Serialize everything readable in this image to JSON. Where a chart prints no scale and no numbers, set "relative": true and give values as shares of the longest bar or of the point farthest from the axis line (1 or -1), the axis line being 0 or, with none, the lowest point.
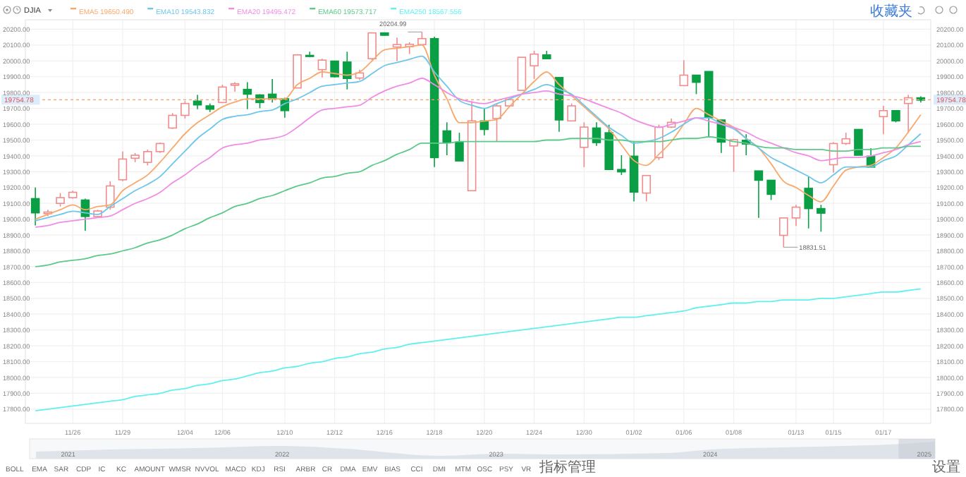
{
  "chart_data": [
    {
      "type": "candlestick",
      "title": "DJIA",
      "subtitle": "收藏夹",
      "categories": [
        null,
        null,
        null,
        "11/26",
        null,
        null,
        null,
        "11/29",
        null,
        null,
        null,
        null,
        "12/04",
        null,
        null,
        "12/06",
        null,
        null,
        null,
        null,
        "12/10",
        null,
        null,
        null,
        "12/12",
        null,
        null,
        null,
        "12/16",
        null,
        null,
        null,
        "12/18",
        null,
        null,
        null,
        "12/20",
        null,
        null,
        null,
        "12/24",
        null,
        null,
        null,
        "12/30",
        null,
        null,
        null,
        "01/02",
        null,
        null,
        null,
        "01/06",
        null,
        null,
        null,
        "01/08",
        null,
        null,
        null,
        null,
        "01/13",
        null,
        null,
        "01/15",
        null,
        null,
        null,
        "01/17",
        null,
        null,
        null
      ],
      "ylim": [
        17710,
        20260
      ],
      "yticks": [
        {
          "value": 17800,
          "label": "17800.00"
        },
        {
          "value": 17900,
          "label": "17900.00"
        },
        {
          "value": 18000,
          "label": "18000.00"
        },
        {
          "value": 18100,
          "label": "18100.00"
        },
        {
          "value": 18200,
          "label": "18200.00"
        },
        {
          "value": 18300,
          "label": "18300.00"
        },
        {
          "value": 18400,
          "label": "18400.00"
        },
        {
          "value": 18500,
          "label": "18500.00"
        },
        {
          "value": 18600,
          "label": "18600.00"
        },
        {
          "value": 18700,
          "label": "18700.00"
        },
        {
          "value": 18800,
          "label": "18800.00"
        },
        {
          "value": 18900,
          "label": "18900.00"
        },
        {
          "value": 19000,
          "label": "19000.00"
        },
        {
          "value": 19100,
          "label": "19100.00"
        },
        {
          "value": 19200,
          "label": "19200.00"
        },
        {
          "value": 19300,
          "label": "19300.00"
        },
        {
          "value": 19400,
          "label": "19400.00"
        },
        {
          "value": 19500,
          "label": "19500.00"
        },
        {
          "value": 19600,
          "label": "19600.00"
        },
        {
          "value": 19700,
          "label": "19700.00"
        },
        {
          "value": 19800,
          "label": "19800.00"
        },
        {
          "value": 19900,
          "label": "19900.00"
        },
        {
          "value": 20000,
          "label": "20000.00"
        },
        {
          "value": 20100,
          "label": "20100.00"
        },
        {
          "value": 20200,
          "label": "20200.00"
        }
      ],
      "y2lim": [
        17710,
        20260
      ],
      "y2ticks": [
        {
          "value": 17800,
          "label": "17800.00"
        },
        {
          "value": 17900,
          "label": "17900.00"
        },
        {
          "value": 18000,
          "label": "18000.00"
        },
        {
          "value": 18100,
          "label": "18100.00"
        },
        {
          "value": 18200,
          "label": "18200.00"
        },
        {
          "value": 18300,
          "label": "18300.00"
        },
        {
          "value": 18400,
          "label": "18400.00"
        },
        {
          "value": 18500,
          "label": "18500.00"
        },
        {
          "value": 18600,
          "label": "18600.00"
        },
        {
          "value": 18700,
          "label": "18700.00"
        },
        {
          "value": 18800,
          "label": "18800.00"
        },
        {
          "value": 18900,
          "label": "18900.00"
        },
        {
          "value": 19000,
          "label": "19000.00"
        },
        {
          "value": 19100,
          "label": "19100.00"
        },
        {
          "value": 19200,
          "label": "19200.00"
        },
        {
          "value": 19300,
          "label": "19300.00"
        },
        {
          "value": 19400,
          "label": "19400.00"
        },
        {
          "value": 19500,
          "label": "19500.00"
        },
        {
          "value": 19600,
          "label": "19600.00"
        },
        {
          "value": 19700,
          "label": "19700.00"
        },
        {
          "value": 19800,
          "label": "19800.00"
        },
        {
          "value": 19900,
          "label": "19900.00"
        },
        {
          "value": 20000,
          "label": "20000.00"
        },
        {
          "value": 20100,
          "label": "20100.00"
        },
        {
          "value": 20200,
          "label": "20200.00"
        }
      ],
      "grid": true,
      "legend": "top left",
      "line_style": "solid",
      "ref_lines": [
        {
          "axis": "y",
          "value": 19754.78,
          "label": "19754.78",
          "color": "#f5a06a",
          "line_style": "dashed"
        }
      ],
      "annotations": [
        "20204.99",
        "18831.51",
        "BOLL",
        "EMA",
        "SAR",
        "CDP",
        "IC",
        "KC",
        "AMOUNT",
        "WMSR",
        "NVVOL",
        "MACD",
        "KDJ",
        "RSI",
        "ARBR",
        "CR",
        "DMA",
        "EMV",
        "BIAS",
        "CCI",
        "DMI",
        "MTM",
        "OSC",
        "PSY",
        "VR",
        "指标管理",
        "设置"
      ],
      "series": [
        {
          "type": "candlestick",
          "ohlc": [
            [
              19130,
              19200,
              18960,
              19040
            ],
            [
              19035,
              19060,
              19020,
              19045
            ],
            [
              19100,
              19165,
              19080,
              19136
            ],
            [
              19136,
              19180,
              19130,
              19170
            ],
            [
              19121,
              19130,
              18927,
              19017
            ],
            [
              19017,
              19060,
              19010,
              19052
            ],
            [
              19076,
              19240,
              19060,
              19210
            ],
            [
              19249,
              19427,
              19240,
              19380
            ],
            [
              19385,
              19418,
              19360,
              19404
            ],
            [
              19359,
              19440,
              19340,
              19427
            ],
            [
              19427,
              19484,
              19418,
              19478
            ],
            [
              19576,
              19670,
              19570,
              19656
            ],
            [
              19656,
              19746,
              19636,
              19731
            ],
            [
              19746,
              19785,
              19695,
              19722
            ],
            [
              19716,
              19731,
              19677,
              19695
            ],
            [
              19737,
              19850,
              19737,
              19835
            ],
            [
              19846,
              19865,
              19805,
              19856
            ],
            [
              19820,
              19865,
              19695,
              19790
            ],
            [
              19785,
              19790,
              19701,
              19737
            ],
            [
              19790,
              19886,
              19737,
              19761
            ],
            [
              19761,
              19767,
              19642,
              19686
            ],
            [
              19829,
              20043,
              19829,
              20038
            ],
            [
              20035,
              20058,
              20023,
              20029
            ],
            [
              19945,
              20014,
              19895,
              20005
            ],
            [
              19999,
              20000,
              19895,
              19900
            ],
            [
              19993,
              20058,
              19820,
              19889
            ],
            [
              19892,
              19945,
              19880,
              19924
            ],
            [
              20014,
              20180,
              20005,
              20177
            ],
            [
              20177,
              20180,
              20160,
              20162
            ],
            [
              20088,
              20147,
              19999,
              20103
            ],
            [
              20090,
              20118,
              20043,
              20105
            ],
            [
              20103,
              20183,
              20100,
              20141
            ],
            [
              20141,
              20153,
              19329,
              19389
            ],
            [
              19558,
              19612,
              19404,
              19487
            ],
            [
              19487,
              19546,
              19368,
              19368
            ],
            [
              19180,
              19746,
              19180,
              19621
            ],
            [
              19621,
              19701,
              19530,
              19567
            ],
            [
              19636,
              19731,
              19493,
              19716
            ],
            [
              19716,
              19761,
              19716,
              19755
            ],
            [
              19814,
              20023,
              19814,
              20023
            ],
            [
              19969,
              20064,
              19886,
              20043
            ],
            [
              20038,
              20064,
              20014,
              20014
            ],
            [
              19895,
              19895,
              19552,
              19627
            ],
            [
              19621,
              19731,
              19621,
              19716
            ],
            [
              19454,
              19612,
              19329,
              19582
            ],
            [
              19576,
              19612,
              19463,
              19484
            ],
            [
              19546,
              19597,
              19314,
              19314
            ],
            [
              19314,
              19404,
              19279,
              19299
            ],
            [
              19398,
              19493,
              19112,
              19171
            ],
            [
              19165,
              19276,
              19112,
              19276
            ],
            [
              19389,
              19597,
              19374,
              19582
            ],
            [
              19582,
              19636,
              19576,
              19612
            ],
            [
              19844,
              20005,
              19844,
              19910
            ],
            [
              19910,
              19910,
              19790,
              19865
            ],
            [
              19933,
              19933,
              19523,
              19642
            ],
            [
              19627,
              19627,
              19419,
              19487
            ],
            [
              19463,
              19508,
              19299,
              19502
            ],
            [
              19499,
              19537,
              19404,
              19475
            ],
            [
              19305,
              19305,
              19008,
              19246
            ],
            [
              19246,
              19246,
              19121,
              19157
            ],
            [
              18898,
              19008,
              18823,
              19008
            ],
            [
              19008,
              19091,
              18957,
              19076
            ],
            [
              19195,
              19270,
              18942,
              19067
            ],
            [
              19067,
              19091,
              18921,
              19038
            ],
            [
              19344,
              19487,
              19294,
              19478
            ],
            [
              19478,
              19546,
              19469,
              19508
            ],
            [
              19567,
              19567,
              19404,
              19404
            ],
            [
              19398,
              19449,
              19329,
              19329
            ],
            [
              19648,
              19716,
              19537,
              19686
            ],
            [
              19686,
              19686,
              19612,
              19621
            ],
            [
              19731,
              19785,
              19546,
              19767
            ],
            [
              19767,
              19776,
              19737,
              19752
            ]
          ],
          "colors": [
            "#0a9f45",
            "#f08c8c",
            "#f08c8c",
            "#f08c8c",
            "#0a9f45",
            "#f08c8c",
            "#f08c8c",
            "#f08c8c",
            "#f08c8c",
            "#f08c8c",
            "#f08c8c",
            "#f08c8c",
            "#f08c8c",
            "#0a9f45",
            "#0a9f45",
            "#f08c8c",
            "#f08c8c",
            "#0a9f45",
            "#0a9f45",
            "#0a9f45",
            "#0a9f45",
            "#f08c8c",
            "#0a9f45",
            "#f08c8c",
            "#0a9f45",
            "#0a9f45",
            "#f08c8c",
            "#f08c8c",
            "#0a9f45",
            "#f08c8c",
            "#f08c8c",
            "#f08c8c",
            "#0a9f45",
            "#0a9f45",
            "#0a9f45",
            "#f08c8c",
            "#0a9f45",
            "#f08c8c",
            "#f08c8c",
            "#f08c8c",
            "#f08c8c",
            "#0a9f45",
            "#0a9f45",
            "#f08c8c",
            "#f08c8c",
            "#0a9f45",
            "#0a9f45",
            "#0a9f45",
            "#0a9f45",
            "#f08c8c",
            "#f08c8c",
            "#f08c8c",
            "#f08c8c",
            "#0a9f45",
            "#0a9f45",
            "#0a9f45",
            "#f08c8c",
            "#0a9f45",
            "#0a9f45",
            "#0a9f45",
            "#f08c8c",
            "#f08c8c",
            "#0a9f45",
            "#0a9f45",
            "#f08c8c",
            "#f08c8c",
            "#0a9f45",
            "#0a9f45",
            "#f08c8c",
            "#0a9f45",
            "#f08c8c",
            "#0a9f45"
          ]
        },
        {
          "type": "line",
          "name": "EMA5 19650.490",
          "color": "#f9a86b",
          "values": [
            19000,
            19030,
            19060,
            19090,
            19060,
            19080,
            19090,
            19180,
            19230,
            19280,
            19360,
            19450,
            19540,
            19610,
            19660,
            19710,
            19740,
            19760,
            19760,
            19760,
            19760,
            19850,
            19890,
            19930,
            19920,
            19910,
            19930,
            20000,
            20070,
            20080,
            20090,
            20100,
            19910,
            19760,
            19610,
            19610,
            19620,
            19630,
            19710,
            19790,
            19870,
            19930,
            19850,
            19780,
            19710,
            19640,
            19570,
            19470,
            19370,
            19340,
            19410,
            19490,
            19600,
            19700,
            19660,
            19620,
            19580,
            19510,
            19450,
            19350,
            19240,
            19200,
            19150,
            19110,
            19210,
            19310,
            19330,
            19340,
            19390,
            19450,
            19550,
            19660
          ]
        },
        {
          "type": "line",
          "name": "EMA10 19543.832",
          "color": "#6ec6ea",
          "values": [
            18990,
            19010,
            19030,
            19050,
            19040,
            19030,
            19080,
            19130,
            19180,
            19220,
            19270,
            19350,
            19430,
            19510,
            19570,
            19630,
            19650,
            19660,
            19680,
            19690,
            19730,
            19760,
            19800,
            19840,
            19850,
            19860,
            19870,
            19920,
            19970,
            19990,
            20010,
            20030,
            19930,
            19840,
            19750,
            19720,
            19700,
            19730,
            19760,
            19790,
            19820,
            19850,
            19820,
            19790,
            19720,
            19650,
            19580,
            19530,
            19480,
            19490,
            19510,
            19550,
            19600,
            19640,
            19640,
            19600,
            19570,
            19510,
            19450,
            19390,
            19350,
            19310,
            19270,
            19230,
            19280,
            19330,
            19330,
            19330,
            19370,
            19400,
            19470,
            19540
          ]
        },
        {
          "type": "line",
          "name": "EMA20 19495.472",
          "color": "#f08ce6",
          "values": [
            18950,
            18960,
            18980,
            18990,
            19000,
            19010,
            19020,
            19060,
            19100,
            19130,
            19170,
            19230,
            19280,
            19340,
            19390,
            19450,
            19470,
            19480,
            19500,
            19510,
            19530,
            19580,
            19640,
            19690,
            19700,
            19710,
            19720,
            19770,
            19810,
            19840,
            19860,
            19890,
            19850,
            19800,
            19760,
            19740,
            19730,
            19750,
            19770,
            19790,
            19800,
            19810,
            19790,
            19780,
            19760,
            19730,
            19700,
            19670,
            19630,
            19600,
            19580,
            19600,
            19620,
            19640,
            19620,
            19600,
            19580,
            19550,
            19510,
            19480,
            19450,
            19420,
            19400,
            19370,
            19380,
            19390,
            19390,
            19400,
            19420,
            19440,
            19470,
            19490
          ]
        },
        {
          "type": "line",
          "name": "EMA60 19573.717",
          "color": "#5cc98a",
          "values": [
            18700,
            18710,
            18730,
            18740,
            18750,
            18770,
            18780,
            18800,
            18820,
            18850,
            18870,
            18900,
            18940,
            18970,
            19010,
            19040,
            19080,
            19100,
            19130,
            19150,
            19180,
            19210,
            19230,
            19260,
            19270,
            19290,
            19300,
            19340,
            19370,
            19410,
            19440,
            19480,
            19480,
            19480,
            19490,
            19490,
            19490,
            19490,
            19490,
            19490,
            19490,
            19500,
            19500,
            19510,
            19510,
            19510,
            19500,
            19500,
            19490,
            19490,
            19490,
            19500,
            19510,
            19510,
            19520,
            19510,
            19490,
            19480,
            19460,
            19450,
            19450,
            19440,
            19440,
            19440,
            19430,
            19430,
            19440,
            19440,
            19450,
            19450,
            19460,
            19460
          ]
        },
        {
          "type": "line",
          "name": "EMA250 18567.556",
          "color": "#5ff0f0",
          "values": [
            17790,
            17800,
            17810,
            17820,
            17830,
            17840,
            17850,
            17860,
            17880,
            17890,
            17900,
            17920,
            17930,
            17950,
            17960,
            17980,
            17990,
            18010,
            18030,
            18040,
            18060,
            18070,
            18090,
            18100,
            18120,
            18130,
            18150,
            18160,
            18180,
            18190,
            18210,
            18220,
            18230,
            18240,
            18250,
            18260,
            18270,
            18280,
            18290,
            18300,
            18310,
            18320,
            18330,
            18340,
            18350,
            18360,
            18370,
            18380,
            18380,
            18390,
            18400,
            18410,
            18420,
            18440,
            18450,
            18460,
            18470,
            18470,
            18480,
            18480,
            18490,
            18490,
            18490,
            18500,
            18500,
            18510,
            18520,
            18530,
            18540,
            18540,
            18550,
            18560
          ]
        }
      ]
    },
    {
      "type": "area",
      "relative": true,
      "color": "#dfe3ea",
      "x": [
        2020.85,
        2021.2,
        2021.6,
        2022.0,
        2022.3,
        2022.75,
        2023.0,
        2023.3,
        2023.8,
        2024.0,
        2024.5,
        2024.9,
        2025.05
      ],
      "values": [
        0.3,
        0.45,
        0.55,
        0.7,
        0.5,
        0,
        0.15,
        0.1,
        0.2,
        0.45,
        0.65,
        0.85,
        1
      ],
      "xlim": [
        2020.82,
        2025.05
      ],
      "xticks": [
        2021,
        2022,
        2023,
        2024,
        2025
      ],
      "bands": [
        {
          "axis": "x",
          "from": 2024.88,
          "to": 2025.05,
          "color": "#c8cdd6"
        }
      ]
    }
  ]
}
